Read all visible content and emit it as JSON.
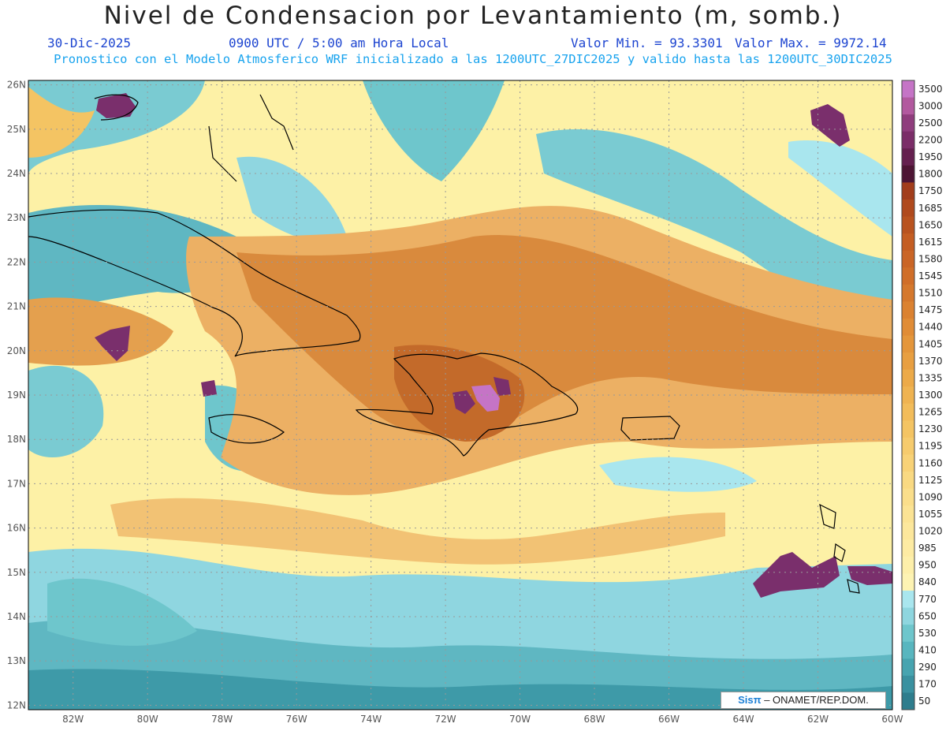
{
  "header": {
    "title": "Nivel de Condensacion por Levantamiento (m, somb.)",
    "date": "30-Dic-2025",
    "time": "0900 UTC / 5:00 am Hora Local",
    "valor_min": "Valor Min. = 93.3301",
    "valor_max": "Valor Max. = 9972.14",
    "description": "Pronostico con el Modelo Atmosferico WRF inicializado a las 1200UTC_27DIC2025 y valido hasta las  1200UTC_30DIC2025"
  },
  "map": {
    "lon_labels": [
      "82W",
      "80W",
      "78W",
      "76W",
      "74W",
      "72W",
      "70W",
      "68W",
      "66W",
      "64W",
      "62W",
      "60W"
    ],
    "lat_labels": [
      "12N",
      "13N",
      "14N",
      "15N",
      "16N",
      "17N",
      "18N",
      "19N",
      "20N",
      "21N",
      "22N",
      "23N",
      "24N",
      "25N",
      "26N"
    ],
    "field_colors": {
      "deep_teal": "#3e9aa8",
      "teal": "#6ec6cc",
      "light_cyan": "#a9e6ee",
      "pale_yellow": "#fdf1a6",
      "orange": "#ecb064",
      "dark_orange": "#d98a3d",
      "brown": "#c36a2a",
      "purple": "#7a2f6c"
    }
  },
  "colorbar": {
    "levels": [
      "3500",
      "3000",
      "2500",
      "2200",
      "1950",
      "1800",
      "1750",
      "1685",
      "1650",
      "1615",
      "1580",
      "1545",
      "1510",
      "1475",
      "1440",
      "1405",
      "1370",
      "1335",
      "1300",
      "1265",
      "1230",
      "1195",
      "1160",
      "1125",
      "1090",
      "1055",
      "1020",
      "985",
      "950",
      "840",
      "770",
      "650",
      "530",
      "410",
      "290",
      "170",
      "50"
    ],
    "colors": [
      "#c574c6",
      "#b2599f",
      "#8f3d7d",
      "#7b2d68",
      "#65204f",
      "#4d1534",
      "#a23d1b",
      "#b04a1d",
      "#b9531f",
      "#c45d22",
      "#ca6526",
      "#d06e29",
      "#d5782d",
      "#db8231",
      "#e08c36",
      "#e4963b",
      "#e89f41",
      "#ecaa49",
      "#efb351",
      "#f2bc5a",
      "#f4c463",
      "#f6cb6d",
      "#f8d277",
      "#f9d982",
      "#fade8b",
      "#fbe394",
      "#fce79c",
      "#fdeba3",
      "#fdefaa",
      "#fdf3b3",
      "#a9e6ee",
      "#8ed6df",
      "#6ec6cc",
      "#58b6bf",
      "#47a4b0",
      "#3a91a0",
      "#2e7d8d"
    ]
  },
  "credit": {
    "logo": "Sisπ",
    "text": " – ONAMET/REP.DOM."
  }
}
